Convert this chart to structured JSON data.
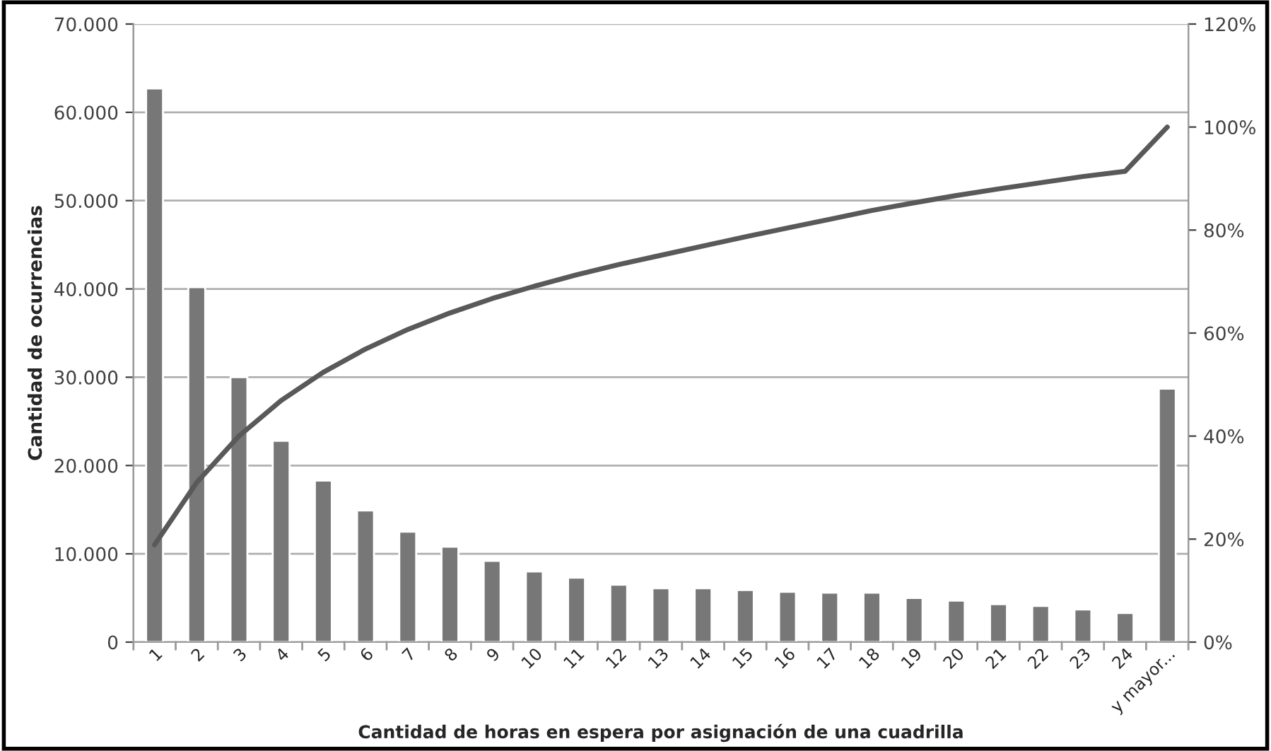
{
  "chart_data": {
    "type": "bar",
    "xlabel": "Cantidad de horas en espera por asignación de una cuadrilla",
    "ylabel": "Cantidad de ocurrencias",
    "categories": [
      "1",
      "2",
      "3",
      "4",
      "5",
      "6",
      "7",
      "8",
      "9",
      "10",
      "11",
      "12",
      "13",
      "14",
      "15",
      "16",
      "17",
      "18",
      "19",
      "20",
      "21",
      "22",
      "23",
      "24",
      "y mayor..."
    ],
    "series": [
      {
        "color": "#777777",
        "values": [
          62700,
          40200,
          30000,
          22800,
          18300,
          14900,
          12500,
          10800,
          9200,
          8000,
          7300,
          6500,
          6100,
          6100,
          5900,
          5700,
          5600,
          5600,
          5000,
          4700,
          4300,
          4100,
          3700,
          3300,
          28700
        ]
      },
      {
        "type": "line",
        "axis": "y2",
        "color": "#595959",
        "values": [
          18.9,
          31.0,
          40.0,
          46.9,
          52.4,
          56.9,
          60.7,
          63.9,
          66.7,
          69.1,
          71.3,
          73.3,
          75.1,
          76.9,
          78.7,
          80.4,
          82.1,
          83.8,
          85.3,
          86.7,
          88.0,
          89.2,
          90.4,
          91.4,
          100
        ]
      }
    ],
    "ylim": [
      0,
      70000
    ],
    "yticks": [
      {
        "value": 0,
        "label": "0"
      },
      {
        "value": 10000,
        "label": "10.000"
      },
      {
        "value": 20000,
        "label": "20.000"
      },
      {
        "value": 30000,
        "label": "30.000"
      },
      {
        "value": 40000,
        "label": "40.000"
      },
      {
        "value": 50000,
        "label": "50.000"
      },
      {
        "value": 60000,
        "label": "60.000"
      },
      {
        "value": 70000,
        "label": "70.000"
      }
    ],
    "y2lim": [
      0,
      120
    ],
    "y2ticks": [
      {
        "value": 0,
        "label": "0%"
      },
      {
        "value": 20,
        "label": "20%"
      },
      {
        "value": 40,
        "label": "40%"
      },
      {
        "value": 60,
        "label": "60%"
      },
      {
        "value": 80,
        "label": "80%"
      },
      {
        "value": 100,
        "label": "100%"
      },
      {
        "value": 120,
        "label": "120%"
      }
    ],
    "grid": "y",
    "marker": "none",
    "line_style": "solid"
  }
}
